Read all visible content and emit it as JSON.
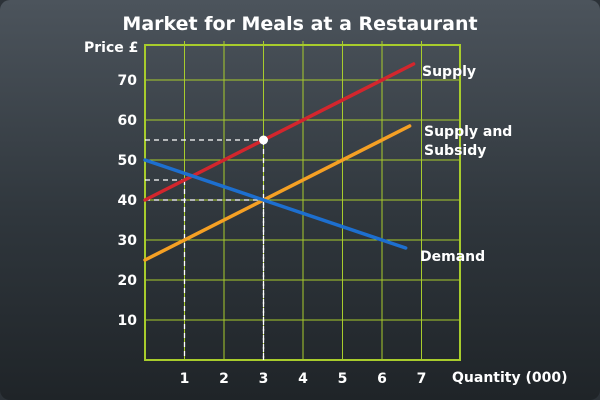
{
  "chart_data": {
    "type": "line",
    "title": "Market for Meals at a Restaurant",
    "ylabel": "Price £",
    "xlabel": "Quantity (000)",
    "xlim": [
      0,
      8
    ],
    "ylim": [
      0,
      80
    ],
    "x_ticks": [
      1,
      2,
      3,
      4,
      5,
      6,
      7
    ],
    "y_ticks": [
      10,
      20,
      30,
      40,
      50,
      60,
      70
    ],
    "grid": true,
    "series": [
      {
        "name": "Supply",
        "color": "#d3262d",
        "x": [
          0,
          6.8
        ],
        "y": [
          40,
          74
        ]
      },
      {
        "name": "Supply and Subsidy",
        "color": "#f5a024",
        "x": [
          0,
          6.7
        ],
        "y": [
          25,
          58.5
        ]
      },
      {
        "name": "Demand",
        "color": "#1d6fcf",
        "x": [
          0,
          6.6
        ],
        "y": [
          50,
          28
        ]
      }
    ],
    "guides": [
      {
        "x": 3,
        "y": 55
      },
      {
        "x": 3,
        "y": 40
      },
      {
        "x": 1,
        "y": 45
      }
    ],
    "marker": {
      "x": 3,
      "y": 55
    }
  }
}
